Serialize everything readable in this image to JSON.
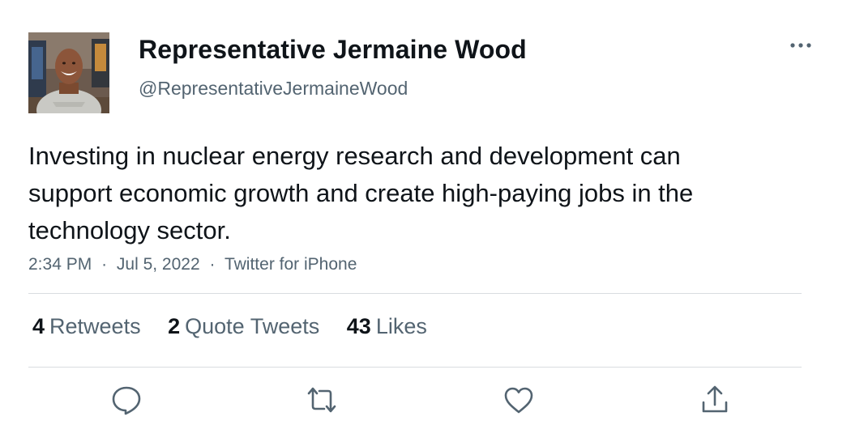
{
  "author": {
    "display_name": "Representative Jermaine Wood",
    "handle": "@RepresentativeJermaineWood",
    "avatar_icon": "profile-photo"
  },
  "tweet": {
    "text": "Investing in nuclear energy research and development can support economic growth and create high-paying jobs in the technology sector.",
    "time": "2:34 PM",
    "date": "Jul 5, 2022",
    "source": "Twitter for iPhone",
    "separator": "·"
  },
  "stats": {
    "retweets": {
      "count": "4",
      "label": "Retweets"
    },
    "quote_tweets": {
      "count": "2",
      "label": "Quote Tweets"
    },
    "likes": {
      "count": "43",
      "label": "Likes"
    }
  },
  "actions": {
    "reply_icon": "reply-icon",
    "retweet_icon": "retweet-icon",
    "like_icon": "heart-icon",
    "share_icon": "share-icon",
    "more_icon": "more-icon"
  },
  "colors": {
    "text": "#0f1419",
    "secondary": "#536471",
    "divider": "#d9dde0",
    "icon": "#536471"
  }
}
